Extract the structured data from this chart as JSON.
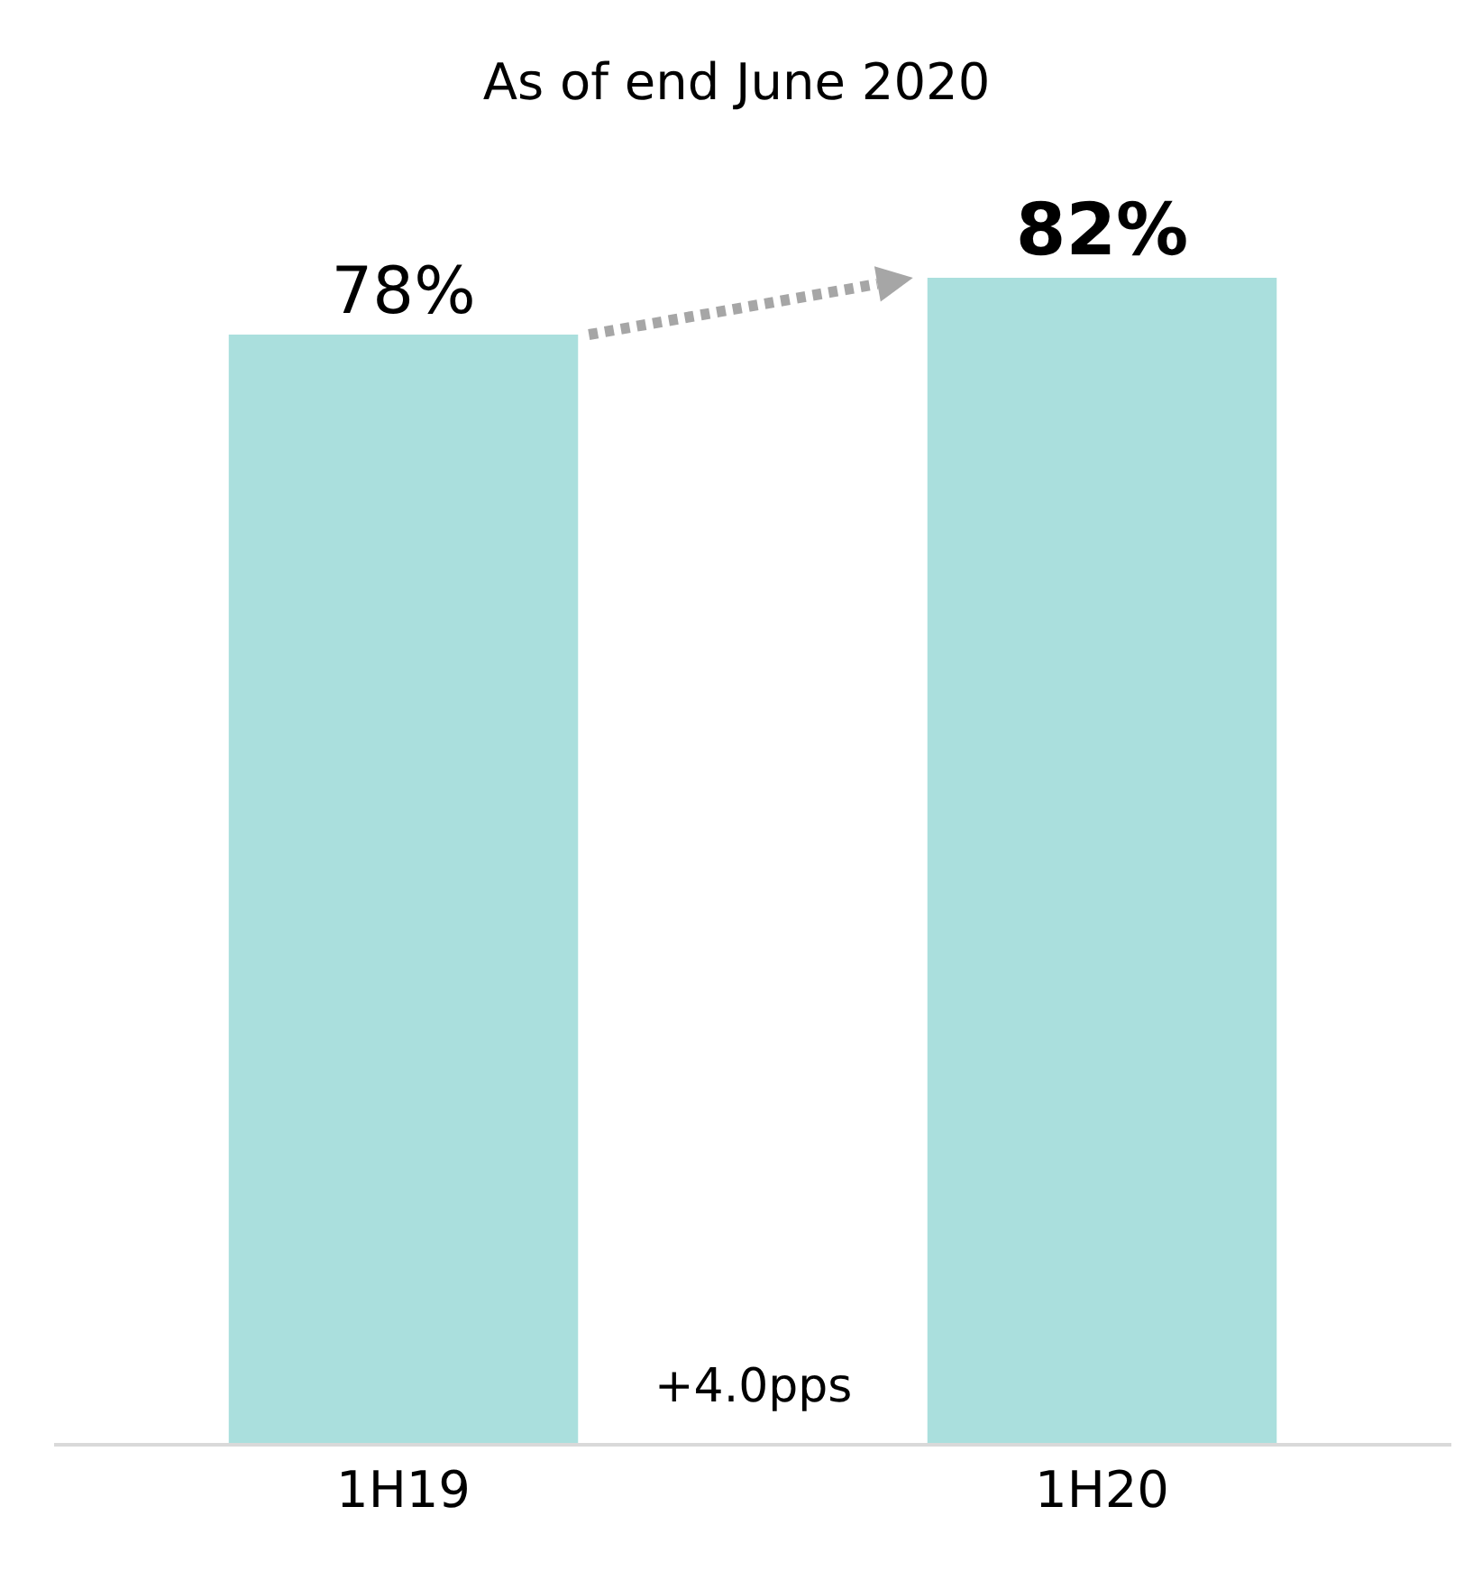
{
  "chart_data": {
    "type": "bar",
    "title": "As of end June 2020",
    "categories": [
      "1H19",
      "1H20"
    ],
    "values": [
      78,
      82
    ],
    "value_labels": [
      "78%",
      "82%"
    ],
    "color": "#aadfdd",
    "tick_labels": "x",
    "grid": false,
    "annotations": [
      "+4.0pps"
    ]
  }
}
